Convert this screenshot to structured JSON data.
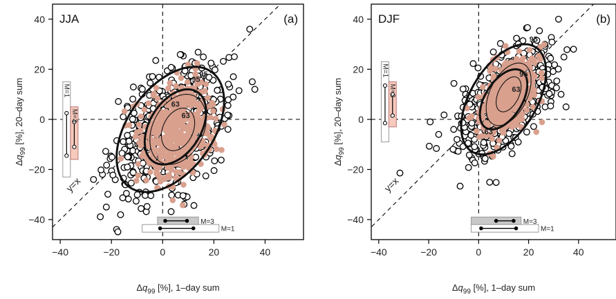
{
  "colors": {
    "large_ensemble_fill": "#ffffff",
    "small_ensemble_fill": "#d9a08e",
    "m3_box": "#c8c8c8",
    "m3_box_vertical": "#f6c9bd",
    "axis": "#000000"
  },
  "chart_data": [
    {
      "type": "scatter",
      "title": "JJA",
      "panel_label": "(a)",
      "xlabel": "Δq99 [%], 1–day sum",
      "ylabel": "Δq99 [%], 20–day sum",
      "xlim": [
        -43,
        55
      ],
      "ylim": [
        -48,
        46
      ],
      "xticks": [
        "-40",
        "-20",
        "0",
        "20",
        "40"
      ],
      "yticks": [
        "-40",
        "-20",
        "0",
        "20",
        "40"
      ],
      "grid": false,
      "diagonal_label": "y=x",
      "series": [
        {
          "role": "open circles",
          "center": [
            3,
            -4
          ],
          "spread": [
            10.5,
            12
          ],
          "corr": 0.4,
          "n": 650
        },
        {
          "role": "filled circles",
          "center": [
            6,
            -4
          ],
          "spread": [
            7,
            9.5
          ],
          "corr": 0.25,
          "n": 550
        }
      ],
      "contours": [
        {
          "label": "95",
          "center": [
            3,
            -4
          ],
          "radii": [
            21,
            25
          ],
          "corr": 0.45,
          "weight": "bold"
        },
        {
          "label": "63",
          "center": [
            5,
            -3
          ],
          "radii": [
            12,
            15
          ],
          "corr": 0.4,
          "weight": "bold"
        },
        {
          "label": "95",
          "center": [
            6,
            -4
          ],
          "radii": [
            11,
            14
          ],
          "corr": 0.3,
          "weight": "thin"
        },
        {
          "label": "63",
          "center": [
            6,
            -4
          ],
          "radii": [
            6.5,
            8.5
          ],
          "corr": 0.3,
          "weight": "thin"
        }
      ],
      "contour_label_points": [
        [
          16,
          17
        ],
        [
          5,
          5
        ],
        [
          13,
          15
        ],
        [
          9,
          0.5
        ]
      ],
      "extra_points": [
        [
          34,
          36
        ],
        [
          -22,
          -35
        ],
        [
          -27,
          -24
        ],
        [
          35,
          15
        ],
        [
          36,
          12
        ],
        [
          28,
          25
        ]
      ],
      "range_bars": {
        "vertical": [
          {
            "label": "M=1",
            "box": [
              -39,
              -23,
              15
            ],
            "whisker": [
              -14.5,
              2.5
            ]
          },
          {
            "label": "M=3",
            "box": [
              -36,
              -16,
              5
            ],
            "whisker": [
              -11,
              -1
            ]
          }
        ],
        "horizontal": [
          {
            "label": "M=3",
            "box": [
              -2,
              14,
              -40.5
            ],
            "whisker": [
              1,
              9.5
            ]
          },
          {
            "label": "M=1",
            "box": [
              -8,
              22,
              -43.5
            ],
            "whisker": [
              -1,
              12
            ]
          }
        ]
      }
    },
    {
      "type": "scatter",
      "title": "DJF",
      "panel_label": "(b)",
      "xlabel": "Δq99 [%], 1–day sum",
      "ylabel": "Δq99 [%], 20–day sum",
      "xlim": [
        -43,
        55
      ],
      "ylim": [
        -48,
        46
      ],
      "xticks": [
        "-40",
        "-20",
        "0",
        "20",
        "40"
      ],
      "yticks": [
        "-40",
        "-20",
        "0",
        "20",
        "40"
      ],
      "grid": false,
      "diagonal_label": "y=x",
      "series": [
        {
          "role": "open circles",
          "center": [
            11,
            8
          ],
          "spread": [
            9,
            10.5
          ],
          "corr": 0.55,
          "n": 650
        },
        {
          "role": "filled circles",
          "center": [
            12,
            10
          ],
          "spread": [
            5.5,
            7.5
          ],
          "corr": 0.45,
          "n": 500
        }
      ],
      "contours": [
        {
          "label": "95",
          "center": [
            10,
            8
          ],
          "radii": [
            17,
            22
          ],
          "corr": 0.5,
          "weight": "bold"
        },
        {
          "label": "63",
          "center": [
            10,
            8
          ],
          "radii": [
            9.5,
            12
          ],
          "corr": 0.5,
          "weight": "bold"
        },
        {
          "label": "95",
          "center": [
            12,
            10
          ],
          "radii": [
            9,
            12.5
          ],
          "corr": 0.45,
          "weight": "thin"
        },
        {
          "label": "63",
          "center": [
            12,
            10
          ],
          "radii": [
            5,
            7
          ],
          "corr": 0.45,
          "weight": "thin"
        }
      ],
      "contour_label_points": [
        [
          22,
          31
        ],
        [
          4,
          -6
        ],
        [
          18,
          17
        ],
        [
          15,
          11
        ]
      ],
      "extra_points": [
        [
          38,
          28
        ],
        [
          32,
          40
        ],
        [
          -16,
          -6
        ],
        [
          -10,
          -4
        ],
        [
          35,
          5
        ],
        [
          33,
          10
        ]
      ],
      "range_bars": {
        "vertical": [
          {
            "label": "M=1",
            "box": [
              -39,
              -9,
              23
            ],
            "whisker": [
              -1.5,
              13.5
            ]
          },
          {
            "label": "M=3",
            "box": [
              -36,
              -3,
              15
            ],
            "whisker": [
              1.5,
              10
            ]
          }
        ],
        "horizontal": [
          {
            "label": "M=3",
            "box": [
              -3,
              17,
              -40.5
            ],
            "whisker": [
              7,
              14
            ]
          },
          {
            "label": "M=1",
            "box": [
              -3,
              24,
              -43.5
            ],
            "whisker": [
              1,
              15
            ]
          }
        ]
      }
    }
  ]
}
